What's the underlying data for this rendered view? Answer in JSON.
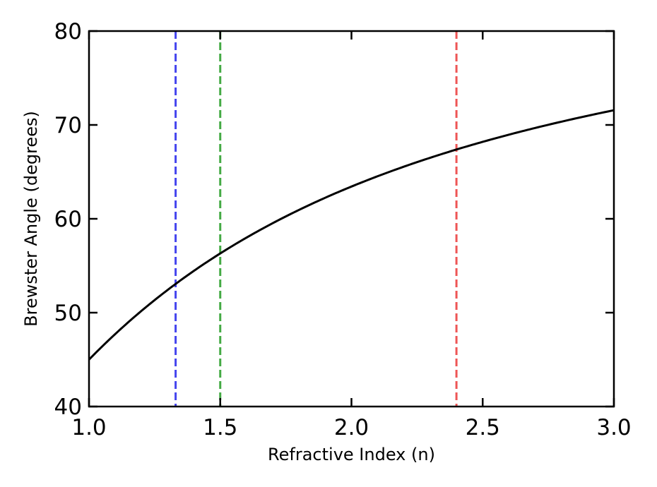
{
  "chart_data": {
    "type": "line",
    "title": "",
    "xlabel": "Refractive Index (n)",
    "ylabel": "Brewster Angle (degrees)",
    "xlim": [
      1.0,
      3.0
    ],
    "ylim": [
      40,
      80
    ],
    "xticks": [
      1.0,
      1.5,
      2.0,
      2.5,
      3.0
    ],
    "xtick_labels": [
      "1.0",
      "1.5",
      "2.0",
      "2.5",
      "3.0"
    ],
    "yticks": [
      40,
      50,
      60,
      70,
      80
    ],
    "ytick_labels": [
      "40",
      "50",
      "60",
      "70",
      "80"
    ],
    "grid": false,
    "legend": "none",
    "series": [
      {
        "type": "line",
        "color": "#000000",
        "style": "solid",
        "x": [
          1.0,
          1.25,
          1.33,
          1.5,
          1.75,
          2.0,
          2.25,
          2.4,
          2.5,
          2.75,
          3.0
        ],
        "y": [
          45.0,
          51.3,
          53.06,
          56.31,
          60.26,
          63.43,
          66.04,
          67.38,
          68.2,
          70.02,
          71.57
        ]
      }
    ],
    "vlines": [
      {
        "x": 1.33,
        "color": "#4444ee",
        "style": "dashed"
      },
      {
        "x": 1.5,
        "color": "#44aa44",
        "style": "dashed"
      },
      {
        "x": 2.4,
        "color": "#ee5555",
        "style": "dashed"
      }
    ]
  }
}
